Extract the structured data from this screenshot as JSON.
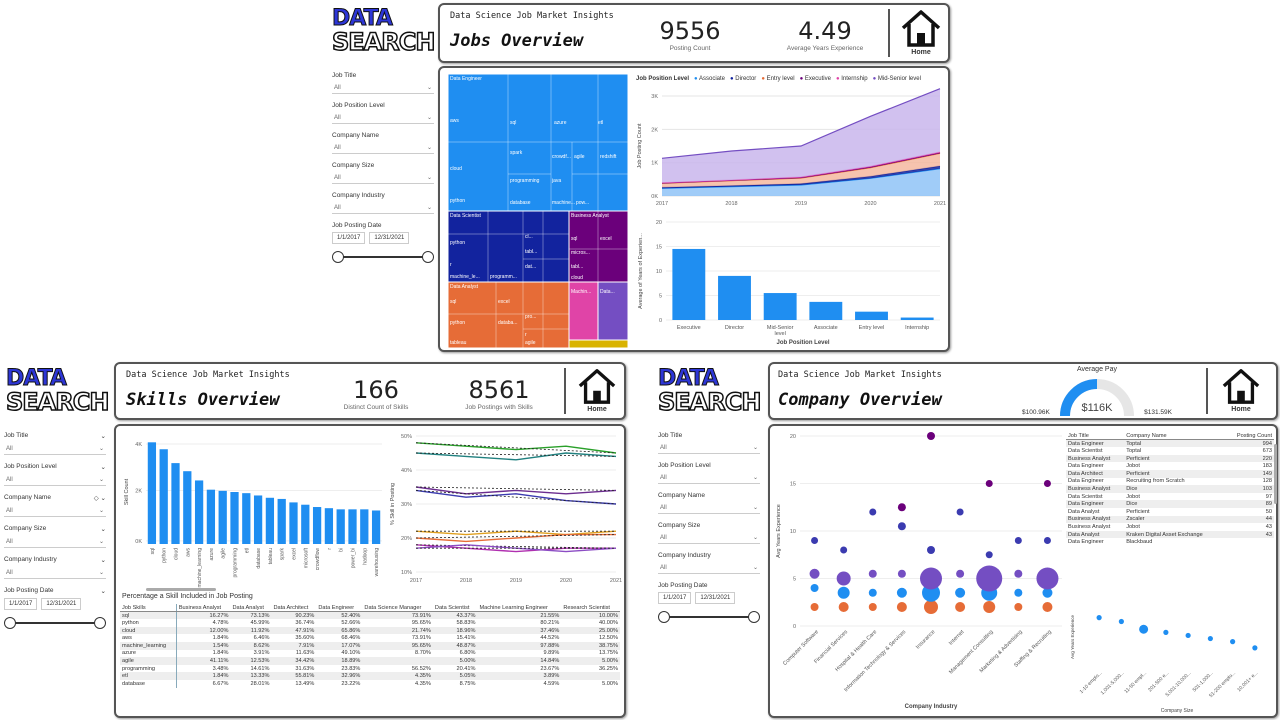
{
  "common": {
    "logo_line1": "DATA",
    "logo_line2": "SEARCH",
    "subtitle": "Data Science Job Market Insights",
    "home_label": "Home",
    "filters": [
      {
        "label": "Job Title",
        "value": "All"
      },
      {
        "label": "Job Position Level",
        "value": "All"
      },
      {
        "label": "Company Name",
        "value": "All"
      },
      {
        "label": "Company Size",
        "value": "All"
      },
      {
        "label": "Company Industry",
        "value": "All"
      }
    ],
    "date_filter": {
      "label": "Job Posting Date",
      "start": "1/1/2017",
      "end": "12/31/2021"
    }
  },
  "jobs": {
    "title": "Jobs Overview",
    "kpi1": {
      "value": "9556",
      "caption": "Posting Count"
    },
    "kpi2": {
      "value": "4.49",
      "caption": "Average Years Experience"
    },
    "treemap_labels": [
      "Data Engineer",
      "aws",
      "sql",
      "azure",
      "etl",
      "cloud",
      "spark",
      "crowdf...",
      "agile",
      "redshift",
      "programming",
      "java",
      "python",
      "database",
      "machine...",
      "pow...",
      "Data Scientist",
      "python",
      "r",
      "cl...",
      "tabl...",
      "dat...",
      "machine_le...",
      "programm...",
      "Business Analyst",
      "sql",
      "excel",
      "micros...",
      "tabl...",
      "cloud",
      "Data Analyst",
      "excel",
      "sql",
      "pro...",
      "python",
      "databa...",
      "tableau",
      "r",
      "agile",
      "Machin...",
      "Data..."
    ],
    "area_legend_title": "Job Position Level",
    "legend": [
      {
        "name": "Associate",
        "color": "#1f8ef1"
      },
      {
        "name": "Director",
        "color": "#12239e"
      },
      {
        "name": "Entry level",
        "color": "#e66c37"
      },
      {
        "name": "Executive",
        "color": "#6b007b"
      },
      {
        "name": "Internship",
        "color": "#e044a7"
      },
      {
        "name": "Mid-Senior level",
        "color": "#744ec2"
      }
    ],
    "area_ylabel": "Job Posting Count",
    "area_yticks": [
      "3K",
      "2K",
      "1K",
      "0K"
    ],
    "area_x": [
      "2017",
      "2018",
      "2019",
      "2020",
      "2021"
    ],
    "bar_ylabel": "Average of Years of Experien...",
    "bar_xlabel": "Job Position Level",
    "bar_yticks": [
      "20",
      "15",
      "10",
      "5",
      "0"
    ]
  },
  "skills": {
    "title": "Skills Overview",
    "kpi1": {
      "value": "166",
      "caption": "Distinct Count of Skills"
    },
    "kpi2": {
      "value": "8561",
      "caption": "Job Postings with Skills"
    },
    "bar_ylabel": "Skill Count",
    "bar_yticks": [
      "4K",
      "2K",
      "0K"
    ],
    "line_ylabel": "% Skill in Posting",
    "line_yticks": [
      "50%",
      "40%",
      "30%",
      "20%",
      "10%"
    ],
    "line_x": [
      "2017",
      "2018",
      "2019",
      "2020",
      "2021"
    ],
    "table_title": "Percentage a Skill Included in Job Posting",
    "table_headers": [
      "Job Skills",
      "Business Analyst",
      "Data Analyst",
      "Data Architect",
      "Data Engineer",
      "Data Science Manager",
      "Data Scientist",
      "Machine Learning Engineer",
      "Research Scientist"
    ],
    "table_rows": [
      [
        "sql",
        "16.27%",
        "73.13%",
        "90.23%",
        "52.40%",
        "73.91%",
        "43.37%",
        "21.55%",
        "10.00%"
      ],
      [
        "python",
        "4.78%",
        "45.99%",
        "36.74%",
        "52.66%",
        "95.65%",
        "58.83%",
        "80.21%",
        "40.00%"
      ],
      [
        "cloud",
        "12.00%",
        "11.92%",
        "47.91%",
        "65.86%",
        "21.74%",
        "18.96%",
        "37.46%",
        "25.00%"
      ],
      [
        "aws",
        "1.84%",
        "6.46%",
        "35.60%",
        "68.46%",
        "73.91%",
        "15.41%",
        "44.52%",
        "12.50%"
      ],
      [
        "machine_learning",
        "1.54%",
        "8.62%",
        "7.91%",
        "17.07%",
        "95.65%",
        "48.87%",
        "97.88%",
        "38.75%"
      ],
      [
        "azure",
        "1.84%",
        "3.91%",
        "11.63%",
        "49.10%",
        "8.70%",
        "6.80%",
        "9.89%",
        "13.75%"
      ],
      [
        "agile",
        "41.11%",
        "12.53%",
        "34.42%",
        "18.89%",
        "",
        "5.00%",
        "14.84%",
        "5.00%"
      ],
      [
        "programming",
        "3.48%",
        "14.61%",
        "31.63%",
        "23.83%",
        "56.52%",
        "20.41%",
        "23.67%",
        "36.25%"
      ],
      [
        "etl",
        "1.84%",
        "13.33%",
        "55.81%",
        "32.96%",
        "4.35%",
        "5.05%",
        "3.89%",
        ""
      ],
      [
        "database",
        "6.67%",
        "28.01%",
        "13.49%",
        "23.22%",
        "4.35%",
        "8.75%",
        "4.59%",
        "5.00%"
      ]
    ]
  },
  "company": {
    "title": "Company Overview",
    "gauge_title": "Average Pay",
    "gauge_value": "$116K",
    "gauge_fraction": 0.5,
    "gauge_min": "$100.96K",
    "gauge_max": "$131.59K",
    "scatter_ylabel": "Avg Years Experience",
    "scatter_xlabel": "Company Industry",
    "scatter_yticks": [
      "20",
      "15",
      "10",
      "5",
      "0"
    ],
    "industries": [
      "Computer Software",
      "Financial Services",
      "Hospital & Health Care",
      "Information Technology & Services",
      "Insurance",
      "Internet",
      "Management Consulting",
      "Marketing & Advertising",
      "Staffing & Recruiting"
    ],
    "table_headers": [
      "Job Title",
      "Company Name",
      "Posting Count"
    ],
    "table_rows": [
      [
        "Data Engineer",
        "Toptal",
        "994"
      ],
      [
        "Data Scientist",
        "Toptal",
        "673"
      ],
      [
        "Business Analyst",
        "Perficient",
        "220"
      ],
      [
        "Data Engineer",
        "Jobot",
        "183"
      ],
      [
        "Data Architect",
        "Perficient",
        "149"
      ],
      [
        "Data Engineer",
        "Recruiting from Scratch",
        "128"
      ],
      [
        "Business Analyst",
        "Dice",
        "103"
      ],
      [
        "Data Scientist",
        "Jobot",
        "97"
      ],
      [
        "Data Engineer",
        "Dice",
        "89"
      ],
      [
        "Data Analyst",
        "Perficient",
        "50"
      ],
      [
        "Business Analyst",
        "Zscaler",
        "44"
      ],
      [
        "Business Analyst",
        "Jobot",
        "43"
      ],
      [
        "Data Analyst",
        "Kraken Digital Asset Exchange",
        "43"
      ],
      [
        "Data Engineer",
        "Blackbaud",
        ""
      ]
    ],
    "size_ylabel": "Avg Years Experience",
    "size_xlabel": "Company Size",
    "sizes": [
      "1-10 emplo...",
      "1,001-5,000...",
      "11-50 empl...",
      "201-500 e...",
      "5,001-10,000...",
      "501-1,000...",
      "51-200 emplo...",
      "10,001+ e..."
    ]
  },
  "chart_data": [
    {
      "type": "area",
      "title": "",
      "xlabel": "",
      "ylabel": "Job Posting Count",
      "x": [
        "2017",
        "2018",
        "2019",
        "2020",
        "2021"
      ],
      "ylim": [
        0,
        3000
      ],
      "series": [
        {
          "name": "Associate",
          "values": [
            230,
            280,
            330,
            530,
            820
          ]
        },
        {
          "name": "Director",
          "values": [
            30,
            30,
            40,
            60,
            80
          ]
        },
        {
          "name": "Entry level",
          "values": [
            120,
            150,
            170,
            260,
            380
          ]
        },
        {
          "name": "Executive",
          "values": [
            10,
            10,
            15,
            20,
            20
          ]
        },
        {
          "name": "Internship",
          "values": [
            10,
            10,
            15,
            20,
            20
          ]
        },
        {
          "name": "Mid-Senior level",
          "values": [
            730,
            870,
            930,
            1500,
            1900
          ]
        }
      ]
    },
    {
      "type": "bar",
      "title": "",
      "xlabel": "Job Position Level",
      "ylabel": "Average of Years of Experien...",
      "categories": [
        "Executive",
        "Director",
        "Mid-Senior level",
        "Associate",
        "Entry level",
        "Internship"
      ],
      "values": [
        14.5,
        9,
        5.5,
        3.7,
        1.7,
        0.5
      ],
      "ylim": [
        0,
        20
      ]
    },
    {
      "type": "bar",
      "title": "",
      "xlabel": "",
      "ylabel": "Skill Count",
      "categories": [
        "sql",
        "python",
        "cloud",
        "aws",
        "machine_learning",
        "azure",
        "agile",
        "programming",
        "etl",
        "database",
        "tableau",
        "spark",
        "excel",
        "microsoft",
        "crowdflow",
        "r",
        "bi",
        "power_bi",
        "hadoop",
        "warehousing"
      ],
      "values": [
        4400,
        4100,
        3500,
        3150,
        2750,
        2350,
        2300,
        2250,
        2200,
        2100,
        2000,
        1950,
        1800,
        1700,
        1600,
        1550,
        1500,
        1500,
        1500,
        1450
      ],
      "ylim": [
        0,
        4500
      ]
    },
    {
      "type": "line",
      "title": "",
      "ylabel": "% Skill in Posting",
      "x": [
        "2017",
        "2018",
        "2019",
        "2020",
        "2021"
      ],
      "ylim": [
        10,
        50
      ],
      "series": [
        {
          "color": "#2aa02a",
          "values": [
            48,
            47,
            46,
            47,
            45
          ]
        },
        {
          "color": "#20807f",
          "values": [
            45,
            44,
            43,
            45,
            44
          ]
        },
        {
          "color": "#6b2d8f",
          "values": [
            35,
            33,
            34,
            33,
            34
          ]
        },
        {
          "color": "#3b3bb0",
          "values": [
            34,
            32,
            33,
            31,
            30
          ]
        },
        {
          "color": "#e0a020",
          "values": [
            22,
            21,
            22,
            21,
            22
          ]
        },
        {
          "color": "#e66c37",
          "values": [
            20,
            19,
            20,
            21,
            21
          ]
        },
        {
          "color": "#b030b0",
          "values": [
            18,
            17,
            16,
            17,
            17
          ]
        },
        {
          "color": "#8c4dc4",
          "values": [
            17,
            18,
            17,
            16,
            17
          ]
        }
      ]
    },
    {
      "type": "scatter",
      "title": "",
      "xlabel": "Company Industry",
      "ylabel": "Avg Years Experience",
      "categories": [
        "Computer Software",
        "Financial Services",
        "Hospital & Health Care",
        "Information Technology & Services",
        "Insurance",
        "Internet",
        "Management Consulting",
        "Marketing & Advertising",
        "Staffing & Recruiting"
      ],
      "ylim": [
        0,
        20
      ],
      "points": [
        {
          "x": 0,
          "y": 2,
          "r": 4,
          "c": "#e66c37"
        },
        {
          "x": 0,
          "y": 4,
          "r": 4,
          "c": "#1f8ef1"
        },
        {
          "x": 0,
          "y": 5.5,
          "r": 5,
          "c": "#744ec2"
        },
        {
          "x": 0,
          "y": 9,
          "r": 3.5,
          "c": "#3b3bb0"
        },
        {
          "x": 1,
          "y": 2,
          "r": 5,
          "c": "#e66c37"
        },
        {
          "x": 1,
          "y": 3.5,
          "r": 6,
          "c": "#1f8ef1"
        },
        {
          "x": 1,
          "y": 5,
          "r": 7,
          "c": "#744ec2"
        },
        {
          "x": 1,
          "y": 8,
          "r": 3.5,
          "c": "#3b3bb0"
        },
        {
          "x": 2,
          "y": 2,
          "r": 4,
          "c": "#e66c37"
        },
        {
          "x": 2,
          "y": 3.5,
          "r": 4,
          "c": "#1f8ef1"
        },
        {
          "x": 2,
          "y": 5.5,
          "r": 4,
          "c": "#744ec2"
        },
        {
          "x": 2,
          "y": 12,
          "r": 3.5,
          "c": "#3b3bb0"
        },
        {
          "x": 3,
          "y": 2,
          "r": 5,
          "c": "#e66c37"
        },
        {
          "x": 3,
          "y": 3.5,
          "r": 5,
          "c": "#1f8ef1"
        },
        {
          "x": 3,
          "y": 5.5,
          "r": 4,
          "c": "#744ec2"
        },
        {
          "x": 3,
          "y": 10.5,
          "r": 4,
          "c": "#3b3bb0"
        },
        {
          "x": 3,
          "y": 12.5,
          "r": 4,
          "c": "#6b007b"
        },
        {
          "x": 4,
          "y": 2,
          "r": 7,
          "c": "#e66c37"
        },
        {
          "x": 4,
          "y": 3.5,
          "r": 9,
          "c": "#1f8ef1"
        },
        {
          "x": 4,
          "y": 5,
          "r": 11,
          "c": "#744ec2"
        },
        {
          "x": 4,
          "y": 8,
          "r": 4,
          "c": "#3b3bb0"
        },
        {
          "x": 4,
          "y": 20,
          "r": 4,
          "c": "#6b007b"
        },
        {
          "x": 5,
          "y": 2,
          "r": 5,
          "c": "#e66c37"
        },
        {
          "x": 5,
          "y": 3.5,
          "r": 5,
          "c": "#1f8ef1"
        },
        {
          "x": 5,
          "y": 5.5,
          "r": 4,
          "c": "#744ec2"
        },
        {
          "x": 5,
          "y": 12,
          "r": 3.5,
          "c": "#3b3bb0"
        },
        {
          "x": 6,
          "y": 2,
          "r": 6,
          "c": "#e66c37"
        },
        {
          "x": 6,
          "y": 3.5,
          "r": 8,
          "c": "#1f8ef1"
        },
        {
          "x": 6,
          "y": 5,
          "r": 13,
          "c": "#744ec2"
        },
        {
          "x": 6,
          "y": 7.5,
          "r": 3.5,
          "c": "#3b3bb0"
        },
        {
          "x": 6,
          "y": 15,
          "r": 3.5,
          "c": "#6b007b"
        },
        {
          "x": 7,
          "y": 2,
          "r": 4,
          "c": "#e66c37"
        },
        {
          "x": 7,
          "y": 3.5,
          "r": 4,
          "c": "#1f8ef1"
        },
        {
          "x": 7,
          "y": 5.5,
          "r": 4,
          "c": "#744ec2"
        },
        {
          "x": 7,
          "y": 9,
          "r": 3.5,
          "c": "#3b3bb0"
        },
        {
          "x": 8,
          "y": 2,
          "r": 5,
          "c": "#e66c37"
        },
        {
          "x": 8,
          "y": 3.5,
          "r": 5,
          "c": "#1f8ef1"
        },
        {
          "x": 8,
          "y": 5,
          "r": 11,
          "c": "#744ec2"
        },
        {
          "x": 8,
          "y": 9,
          "r": 3.5,
          "c": "#3b3bb0"
        },
        {
          "x": 8,
          "y": 15,
          "r": 3.5,
          "c": "#6b007b"
        }
      ]
    },
    {
      "type": "scatter",
      "title": "",
      "xlabel": "Company Size",
      "ylabel": "Avg Years Experience",
      "categories": [
        "1-10 emplo...",
        "1,001-5,000...",
        "11-50 empl...",
        "201-500 e...",
        "5,001-10,000...",
        "501-1,000...",
        "51-200 emplo...",
        "10,001+ e..."
      ],
      "values": [
        6.5,
        6,
        5,
        4.6,
        4.2,
        3.8,
        3.4,
        2.6
      ]
    }
  ]
}
